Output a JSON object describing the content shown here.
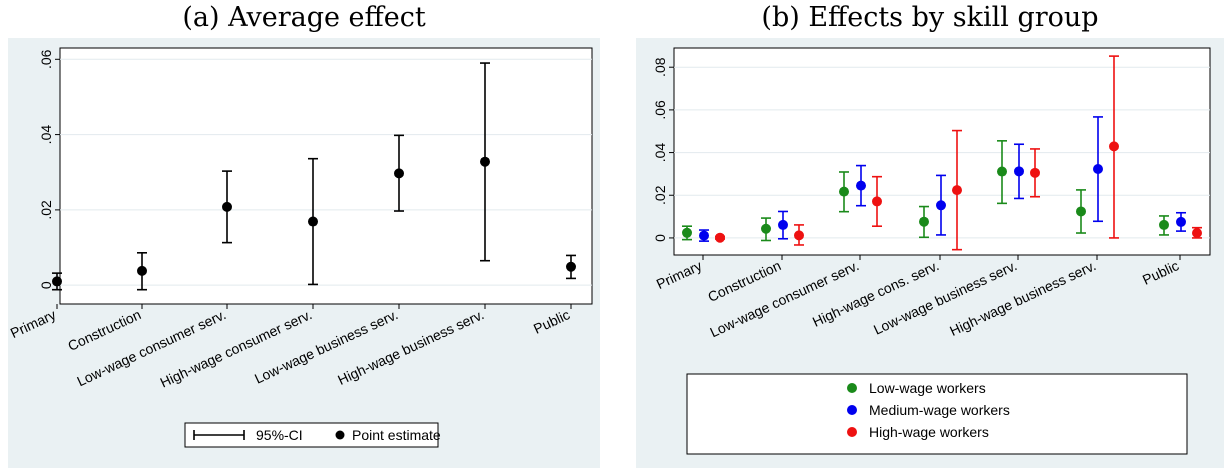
{
  "chart_data": [
    {
      "type": "scatter",
      "title": "(a) Average effect",
      "xlabel": "",
      "ylabel": "",
      "ylim": [
        -0.005,
        0.063
      ],
      "yticks": [
        0,
        0.02,
        0.04,
        0.06
      ],
      "ytick_labels": [
        "0",
        ".02",
        ".04",
        ".06"
      ],
      "grid": true,
      "categories": [
        "Primary",
        "Construction",
        "Low-wage consumer serv.",
        "High-wage consumer serv.",
        "Low-wage business serv.",
        "High-wage business serv.",
        "Public"
      ],
      "series": [
        {
          "values": [
            0.001,
            0.0038,
            0.0208,
            0.0169,
            0.0297,
            0.0328,
            0.0049
          ],
          "ci_low": [
            -0.0012,
            -0.0012,
            0.0113,
            0.0002,
            0.0197,
            0.0065,
            0.0018
          ],
          "ci_high": [
            0.0032,
            0.0086,
            0.0303,
            0.0336,
            0.0398,
            0.059,
            0.0079
          ],
          "color": "#000000"
        }
      ],
      "legend": {
        "position": "bottom",
        "items": [
          "95%-CI",
          "Point estimate"
        ]
      }
    },
    {
      "type": "scatter",
      "title": "(b) Effects by skill group",
      "xlabel": "",
      "ylabel": "",
      "ylim": [
        -0.008,
        0.089
      ],
      "yticks": [
        0,
        0.02,
        0.04,
        0.06,
        0.08
      ],
      "ytick_labels": [
        "0",
        ".02",
        ".04",
        ".06",
        ".08"
      ],
      "grid": true,
      "categories": [
        "Primary",
        "Construction",
        "Low-wage consumer serv.",
        "High-wage cons. serv.",
        "Low-wage business serv.",
        "High-wage business serv.",
        "Public"
      ],
      "series": [
        {
          "name": "Low-wage workers",
          "color": "#1a8a1a",
          "values": [
            0.0024,
            0.0043,
            0.0217,
            0.0076,
            0.0311,
            0.0124,
            0.0061
          ],
          "ci_low": [
            -0.0008,
            -0.0012,
            0.0123,
            0.0003,
            0.0162,
            0.0023,
            0.0014
          ],
          "ci_high": [
            0.0055,
            0.0093,
            0.0309,
            0.0147,
            0.0455,
            0.0225,
            0.0103
          ]
        },
        {
          "name": "Medium-wage workers",
          "color": "#0000ee",
          "values": [
            0.0011,
            0.0061,
            0.0245,
            0.0153,
            0.0312,
            0.0323,
            0.0075
          ],
          "ci_low": [
            -0.0015,
            -0.0004,
            0.0151,
            0.0014,
            0.0185,
            0.0078,
            0.0032
          ],
          "ci_high": [
            0.0037,
            0.0124,
            0.0339,
            0.0293,
            0.0439,
            0.0567,
            0.0118
          ]
        },
        {
          "name": "High-wage workers",
          "color": "#ee1111",
          "values": [
            0.0001,
            0.0012,
            0.0171,
            0.0224,
            0.0305,
            0.0429,
            0.0023
          ],
          "ci_low": [
            -0.0005,
            -0.0033,
            0.0055,
            -0.0055,
            0.0193,
            0.0,
            0.0
          ],
          "ci_high": [
            0.0007,
            0.0061,
            0.0287,
            0.0503,
            0.0417,
            0.0852,
            0.0048
          ]
        }
      ],
      "legend": {
        "position": "bottom"
      }
    }
  ]
}
